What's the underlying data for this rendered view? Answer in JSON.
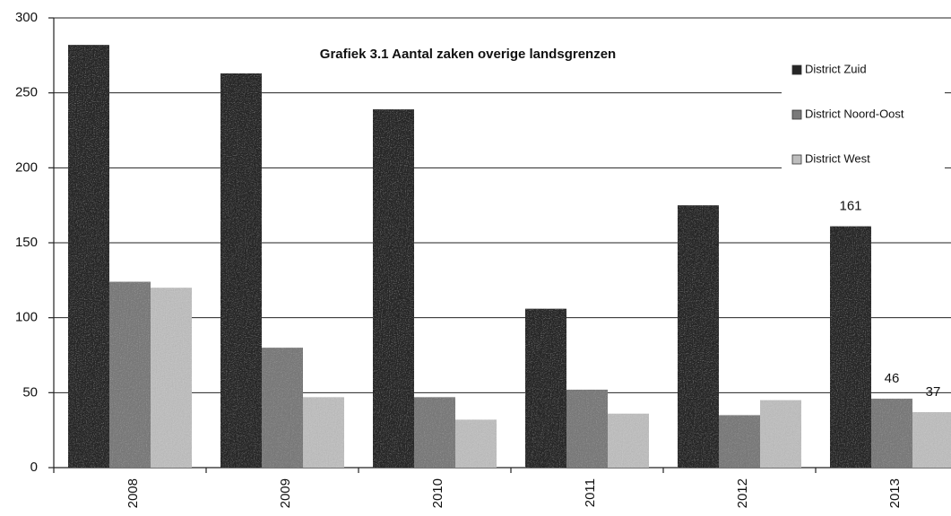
{
  "chart_data": {
    "type": "bar",
    "title": "Grafiek 3.1 Aantal zaken overige landsgrenzen",
    "categories": [
      "2008",
      "2009",
      "2010",
      "2011",
      "2012",
      "2013"
    ],
    "series": [
      {
        "name": "District Zuid",
        "color": "#262626",
        "values": [
          282,
          263,
          239,
          106,
          175,
          161
        ],
        "value_labels": [
          null,
          null,
          null,
          null,
          null,
          "161"
        ]
      },
      {
        "name": "District Noord-Oost",
        "color": "#7a7a7a",
        "values": [
          124,
          80,
          47,
          52,
          35,
          46
        ],
        "value_labels": [
          null,
          null,
          null,
          null,
          null,
          "46"
        ]
      },
      {
        "name": "District West",
        "color": "#bdbdbd",
        "values": [
          120,
          47,
          32,
          36,
          45,
          37
        ],
        "value_labels": [
          null,
          null,
          null,
          null,
          null,
          "37"
        ]
      }
    ],
    "ylim": [
      0,
      300
    ],
    "yticks": [
      0,
      50,
      100,
      150,
      200,
      250,
      300
    ],
    "grid": true,
    "legend": "top-right"
  }
}
